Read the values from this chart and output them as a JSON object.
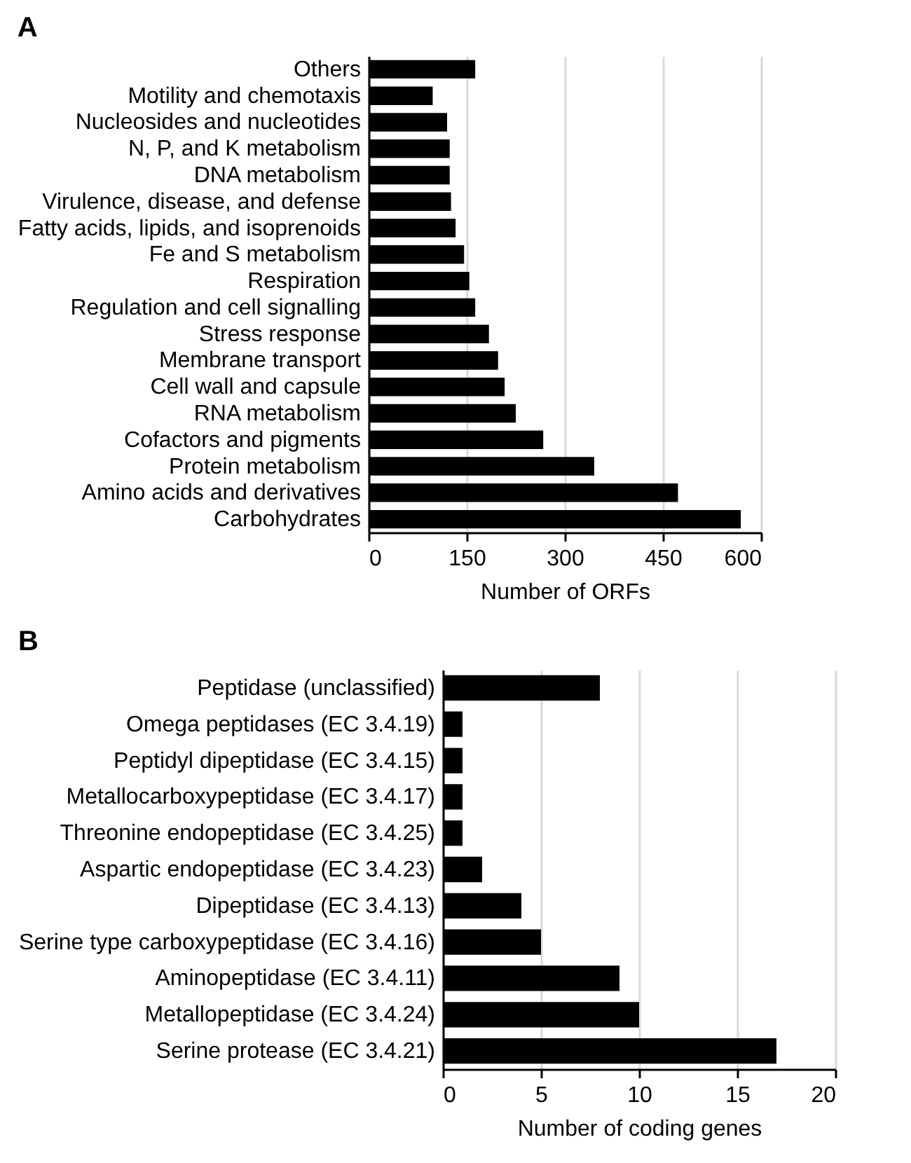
{
  "chart_data": [
    {
      "type": "bar",
      "orientation": "horizontal",
      "title": "A",
      "xlabel": "Number of ORFs",
      "color": "#000000",
      "grid": "x",
      "xlim": [
        0,
        600
      ],
      "xticks": [
        0,
        150,
        300,
        450,
        600
      ],
      "categories": [
        "Others",
        "Motility and chemotaxis",
        "Nucleosides and nucleotides",
        "N, P, and K metabolism",
        "DNA metabolism",
        "Virulence, disease, and defense",
        "Fatty acids, lipids, and isoprenoids",
        "Fe and S metabolism",
        "Respiration",
        "Regulation and cell signalling",
        "Stress response",
        "Membrane transport",
        "Cell wall and capsule",
        "RNA metabolism",
        "Cofactors and pigments",
        "Protein metabolism",
        "Amino acids and derivatives",
        "Carbohydrates"
      ],
      "values": [
        163,
        98,
        120,
        124,
        124,
        126,
        133,
        146,
        154,
        163,
        184,
        198,
        208,
        225,
        267,
        345,
        473,
        569
      ]
    },
    {
      "type": "bar",
      "orientation": "horizontal",
      "title": "B",
      "xlabel": "Number of coding genes",
      "color": "#000000",
      "grid": "x",
      "xlim": [
        0,
        20
      ],
      "xticks": [
        0,
        5,
        10,
        15,
        20
      ],
      "categories": [
        "Peptidase (unclassified)",
        "Omega peptidases (EC 3.4.19)",
        "Peptidyl dipeptidase (EC 3.4.15)",
        "Metallocarboxypeptidase (EC 3.4.17)",
        "Threonine endopeptidase (EC 3.4.25)",
        "Aspartic endopeptidase (EC 3.4.23)",
        "Dipeptidase (EC 3.4.13)",
        "Serine type carboxypeptidase (EC 3.4.16)",
        "Aminopeptidase (EC 3.4.11)",
        "Metallopeptidase (EC 3.4.24)",
        "Serine protease (EC 3.4.21)"
      ],
      "values": [
        8,
        1,
        1,
        1,
        1,
        2,
        4,
        5,
        9,
        10,
        17
      ]
    }
  ]
}
